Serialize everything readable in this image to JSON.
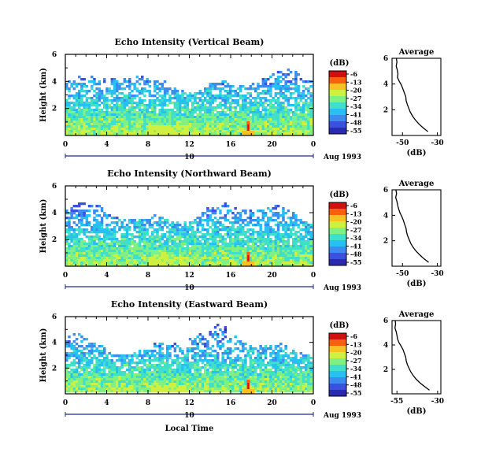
{
  "chart_data": [
    {
      "type": "heatmap",
      "title": "Echo Intensity (Vertical Beam)",
      "ylabel": "Height (km)",
      "ylim": [
        0,
        6
      ],
      "y_ticks": [
        "6",
        "4",
        "2"
      ],
      "xlim": [
        0,
        24
      ],
      "x_ticks": [
        "0",
        "4",
        "8",
        "12",
        "16",
        "20",
        "0"
      ],
      "date_label": "10",
      "month_label": "Aug 1993",
      "colorbar": {
        "unit": "(dB)",
        "levels": [
          "-6",
          "-13",
          "-20",
          "-27",
          "-34",
          "-41",
          "-48",
          "-55"
        ]
      },
      "profile": {
        "title": "Average",
        "xlabel": "(dB)",
        "x_ticks": [
          "-50",
          "-30"
        ],
        "y_ticks": [
          "6",
          "4",
          "2"
        ],
        "xlim": [
          -56,
          -28
        ],
        "ylim": [
          0,
          6
        ],
        "points": [
          [
            -53.5,
            6.0
          ],
          [
            -53.2,
            5.7
          ],
          [
            -53.6,
            5.4
          ],
          [
            -53.0,
            5.1
          ],
          [
            -52.6,
            4.8
          ],
          [
            -52.9,
            4.5
          ],
          [
            -51.8,
            4.2
          ],
          [
            -50.6,
            3.9
          ],
          [
            -49.7,
            3.6
          ],
          [
            -48.9,
            3.3
          ],
          [
            -48.1,
            3.0
          ],
          [
            -47.9,
            2.7
          ],
          [
            -47.2,
            2.4
          ],
          [
            -46.4,
            2.1
          ],
          [
            -45.5,
            1.8
          ],
          [
            -44.2,
            1.5
          ],
          [
            -42.6,
            1.2
          ],
          [
            -40.6,
            0.9
          ],
          [
            -38.2,
            0.6
          ],
          [
            -35.4,
            0.3
          ]
        ]
      }
    },
    {
      "type": "heatmap",
      "title": "Echo Intensity (Northward Beam)",
      "ylabel": "Height (km)",
      "ylim": [
        0,
        6
      ],
      "y_ticks": [
        "6",
        "4",
        "2"
      ],
      "xlim": [
        0,
        24
      ],
      "x_ticks": [
        "0",
        "4",
        "8",
        "12",
        "16",
        "20",
        "0"
      ],
      "date_label": "10",
      "month_label": "Aug 1993",
      "colorbar": {
        "unit": "(dB)",
        "levels": [
          "-6",
          "-13",
          "-20",
          "-27",
          "-34",
          "-41",
          "-48",
          "-55"
        ]
      },
      "profile": {
        "title": "Average",
        "xlabel": "(dB)",
        "x_ticks": [
          "-50",
          "-30"
        ],
        "y_ticks": [
          "6",
          "4",
          "2"
        ],
        "xlim": [
          -56,
          -28
        ],
        "ylim": [
          0,
          6
        ],
        "points": [
          [
            -53.8,
            6.0
          ],
          [
            -53.4,
            5.7
          ],
          [
            -53.9,
            5.4
          ],
          [
            -53.2,
            5.1
          ],
          [
            -52.8,
            4.8
          ],
          [
            -52.2,
            4.5
          ],
          [
            -51.5,
            4.2
          ],
          [
            -50.4,
            3.9
          ],
          [
            -49.5,
            3.6
          ],
          [
            -48.8,
            3.3
          ],
          [
            -48.0,
            3.0
          ],
          [
            -47.7,
            2.7
          ],
          [
            -47.1,
            2.4
          ],
          [
            -46.2,
            2.1
          ],
          [
            -45.3,
            1.8
          ],
          [
            -44.0,
            1.5
          ],
          [
            -42.3,
            1.2
          ],
          [
            -40.2,
            0.9
          ],
          [
            -37.8,
            0.6
          ],
          [
            -35.0,
            0.3
          ]
        ]
      }
    },
    {
      "type": "heatmap",
      "title": "Echo Intensity (Eastward Beam)",
      "ylabel": "Height (km)",
      "ylim": [
        0,
        6
      ],
      "y_ticks": [
        "6",
        "4",
        "2"
      ],
      "xlim": [
        0,
        24
      ],
      "x_ticks": [
        "0",
        "4",
        "8",
        "12",
        "16",
        "20",
        "0"
      ],
      "xlabel": "Local Time",
      "date_label": "10",
      "month_label": "Aug 1993",
      "colorbar": {
        "unit": "(dB)",
        "levels": [
          "-6",
          "-13",
          "-20",
          "-27",
          "-34",
          "-41",
          "-48",
          "-55"
        ]
      },
      "profile": {
        "title": "Average",
        "xlabel": "(dB)",
        "x_ticks": [
          "-55",
          "-30"
        ],
        "y_ticks": [
          "6",
          "4",
          "2"
        ],
        "xlim": [
          -58,
          -28
        ],
        "ylim": [
          0,
          6
        ],
        "points": [
          [
            -56.0,
            6.0
          ],
          [
            -55.8,
            5.7
          ],
          [
            -56.2,
            5.4
          ],
          [
            -55.5,
            5.1
          ],
          [
            -55.0,
            4.8
          ],
          [
            -54.6,
            4.5
          ],
          [
            -53.8,
            4.2
          ],
          [
            -52.4,
            3.9
          ],
          [
            -51.2,
            3.6
          ],
          [
            -50.4,
            3.3
          ],
          [
            -49.6,
            3.0
          ],
          [
            -49.3,
            2.7
          ],
          [
            -48.6,
            2.4
          ],
          [
            -47.6,
            2.1
          ],
          [
            -46.5,
            1.8
          ],
          [
            -45.0,
            1.5
          ],
          [
            -43.2,
            1.2
          ],
          [
            -40.8,
            0.9
          ],
          [
            -38.0,
            0.6
          ],
          [
            -35.0,
            0.3
          ]
        ]
      }
    }
  ]
}
